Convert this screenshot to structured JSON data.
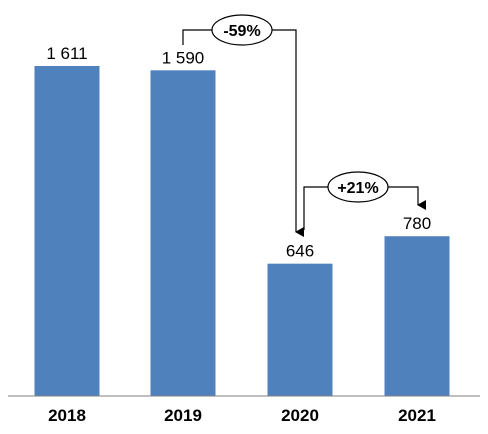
{
  "chart_data": {
    "type": "bar",
    "title": "",
    "xlabel": "",
    "ylabel": "",
    "categories": [
      "2018",
      "2019",
      "2020",
      "2021"
    ],
    "values": [
      1611,
      1590,
      646,
      780
    ],
    "value_labels": [
      "1 611",
      "1 590",
      "646",
      "780"
    ],
    "ylim": [
      0,
      1611
    ],
    "grid": false,
    "legend": "none",
    "bar_color": "#4F81BD",
    "annotations": [
      {
        "label": "-59%",
        "from": "2019",
        "to": "2020"
      },
      {
        "label": "+21%",
        "from": "2020",
        "to": "2021"
      }
    ]
  }
}
